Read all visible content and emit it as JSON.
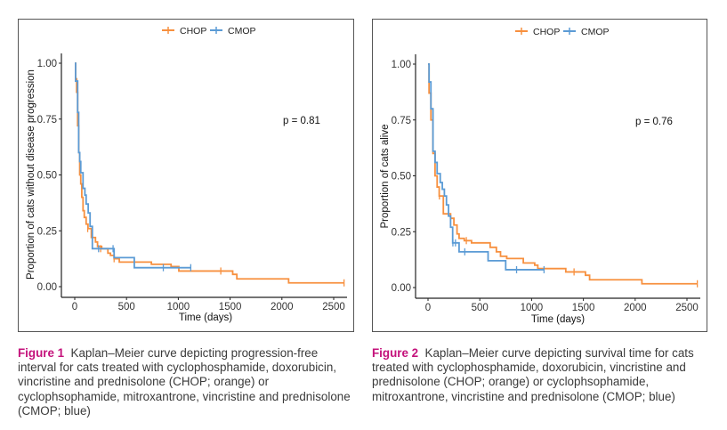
{
  "colors": {
    "chop": "#F7903F",
    "cmop": "#5B9BD5",
    "caption_accent": "#C4127B"
  },
  "chart_data": [
    {
      "type": "line",
      "subtype": "kaplan-meier-step",
      "title": "",
      "xlabel": "Time (days)",
      "ylabel": "Proportion of cats without disease progression",
      "xlim": [
        -100,
        2620
      ],
      "ylim": [
        -0.05,
        1.05
      ],
      "xticks": [
        0,
        500,
        1000,
        1500,
        2000,
        2500
      ],
      "xtick_labels": [
        "0",
        "500",
        "1000",
        "1500",
        "2000",
        "2500"
      ],
      "yticks": [
        0,
        0.25,
        0.5,
        0.75,
        1.0
      ],
      "ytick_labels": [
        "0.00",
        "0.25",
        "0.50",
        "0.75",
        "1.00"
      ],
      "grid": false,
      "legend": {
        "placement": "top-center",
        "entries": [
          "CHOP",
          "CMOP"
        ]
      },
      "annotation": "p = 0.81",
      "series": [
        {
          "name": "CHOP",
          "steps": [
            [
              0,
              1
            ],
            [
              8,
              0.93
            ],
            [
              18,
              0.87
            ],
            [
              28,
              0.72
            ],
            [
              38,
              0.6
            ],
            [
              48,
              0.5
            ],
            [
              58,
              0.46
            ],
            [
              68,
              0.4
            ],
            [
              80,
              0.34
            ],
            [
              92,
              0.31
            ],
            [
              110,
              0.28
            ],
            [
              128,
              0.26
            ],
            [
              160,
              0.22
            ],
            [
              200,
              0.2
            ],
            [
              220,
              0.18
            ],
            [
              260,
              0.17
            ],
            [
              320,
              0.15
            ],
            [
              345,
              0.14
            ],
            [
              380,
              0.125
            ],
            [
              430,
              0.11
            ],
            [
              740,
              0.1
            ],
            [
              930,
              0.09
            ],
            [
              1005,
              0.07
            ],
            [
              1525,
              0.055
            ],
            [
              1565,
              0.035
            ],
            [
              2065,
              0.017
            ],
            [
              2600,
              0.017
            ]
          ],
          "censored": [
            [
              125,
              0.26
            ],
            [
              250,
              0.17
            ],
            [
              380,
              0.125
            ],
            [
              1410,
              0.07
            ],
            [
              2600,
              0.017
            ]
          ]
        },
        {
          "name": "CMOP",
          "steps": [
            [
              0,
              1
            ],
            [
              8,
              0.92
            ],
            [
              28,
              0.78
            ],
            [
              38,
              0.6
            ],
            [
              48,
              0.56
            ],
            [
              58,
              0.51
            ],
            [
              80,
              0.44
            ],
            [
              98,
              0.41
            ],
            [
              110,
              0.37
            ],
            [
              130,
              0.33
            ],
            [
              148,
              0.27
            ],
            [
              170,
              0.17
            ],
            [
              380,
              0.13
            ],
            [
              575,
              0.085
            ],
            [
              1120,
              0.085
            ]
          ],
          "censored": [
            [
              230,
              0.17
            ],
            [
              370,
              0.17
            ],
            [
              855,
              0.085
            ],
            [
              1120,
              0.085
            ]
          ]
        }
      ]
    },
    {
      "type": "line",
      "subtype": "kaplan-meier-step",
      "title": "",
      "xlabel": "Time (days)",
      "ylabel": "Proportion of cats alive",
      "xlim": [
        -100,
        2620
      ],
      "ylim": [
        -0.05,
        1.05
      ],
      "xticks": [
        0,
        500,
        1000,
        1500,
        2000,
        2500
      ],
      "xtick_labels": [
        "0",
        "500",
        "1000",
        "1500",
        "2000",
        "2500"
      ],
      "yticks": [
        0,
        0.25,
        0.5,
        0.75,
        1.0
      ],
      "ytick_labels": [
        "0.00",
        "0.25",
        "0.50",
        "0.75",
        "1.00"
      ],
      "grid": false,
      "legend": {
        "placement": "top-center",
        "entries": [
          "CHOP",
          "CMOP"
        ]
      },
      "annotation": "p = 0.76",
      "series": [
        {
          "name": "CHOP",
          "steps": [
            [
              0,
              1
            ],
            [
              10,
              0.87
            ],
            [
              28,
              0.75
            ],
            [
              48,
              0.6
            ],
            [
              68,
              0.5
            ],
            [
              88,
              0.45
            ],
            [
              108,
              0.41
            ],
            [
              148,
              0.33
            ],
            [
              218,
              0.31
            ],
            [
              250,
              0.28
            ],
            [
              280,
              0.24
            ],
            [
              300,
              0.22
            ],
            [
              350,
              0.21
            ],
            [
              420,
              0.2
            ],
            [
              600,
              0.18
            ],
            [
              660,
              0.16
            ],
            [
              700,
              0.14
            ],
            [
              760,
              0.13
            ],
            [
              920,
              0.11
            ],
            [
              1030,
              0.1
            ],
            [
              1060,
              0.085
            ],
            [
              1330,
              0.07
            ],
            [
              1520,
              0.055
            ],
            [
              1560,
              0.035
            ],
            [
              2065,
              0.017
            ],
            [
              2600,
              0.017
            ]
          ],
          "censored": [
            [
              110,
              0.41
            ],
            [
              370,
              0.21
            ],
            [
              1410,
              0.07
            ],
            [
              2600,
              0.017
            ]
          ]
        },
        {
          "name": "CMOP",
          "steps": [
            [
              0,
              1
            ],
            [
              10,
              0.92
            ],
            [
              28,
              0.8
            ],
            [
              48,
              0.61
            ],
            [
              68,
              0.56
            ],
            [
              88,
              0.51
            ],
            [
              118,
              0.47
            ],
            [
              138,
              0.44
            ],
            [
              158,
              0.41
            ],
            [
              178,
              0.37
            ],
            [
              198,
              0.32
            ],
            [
              218,
              0.27
            ],
            [
              238,
              0.2
            ],
            [
              300,
              0.16
            ],
            [
              580,
              0.12
            ],
            [
              750,
              0.08
            ],
            [
              1120,
              0.08
            ]
          ],
          "censored": [
            [
              240,
              0.2
            ],
            [
              265,
              0.2
            ],
            [
              355,
              0.16
            ],
            [
              855,
              0.08
            ],
            [
              1120,
              0.08
            ]
          ]
        }
      ]
    }
  ],
  "captions": [
    {
      "label": "Figure 1",
      "text": "Kaplan–Meier curve depicting progression-free interval for cats treated with cyclophosphamide, doxorubicin, vincristine and prednisolone (CHOP; orange) or cyclophsophamide, mitroxantrone, vincristine and prednisolone (CMOP; blue)"
    },
    {
      "label": "Figure 2",
      "text": "Kaplan–Meier curve depicting survival time for cats treated with cyclophosphamide, doxorubicin, vincristine and prednisolone (CHOP; orange) or cyclophsophamide, mitroxantrone, vincristine and prednisolone (CMOP; blue)"
    }
  ]
}
